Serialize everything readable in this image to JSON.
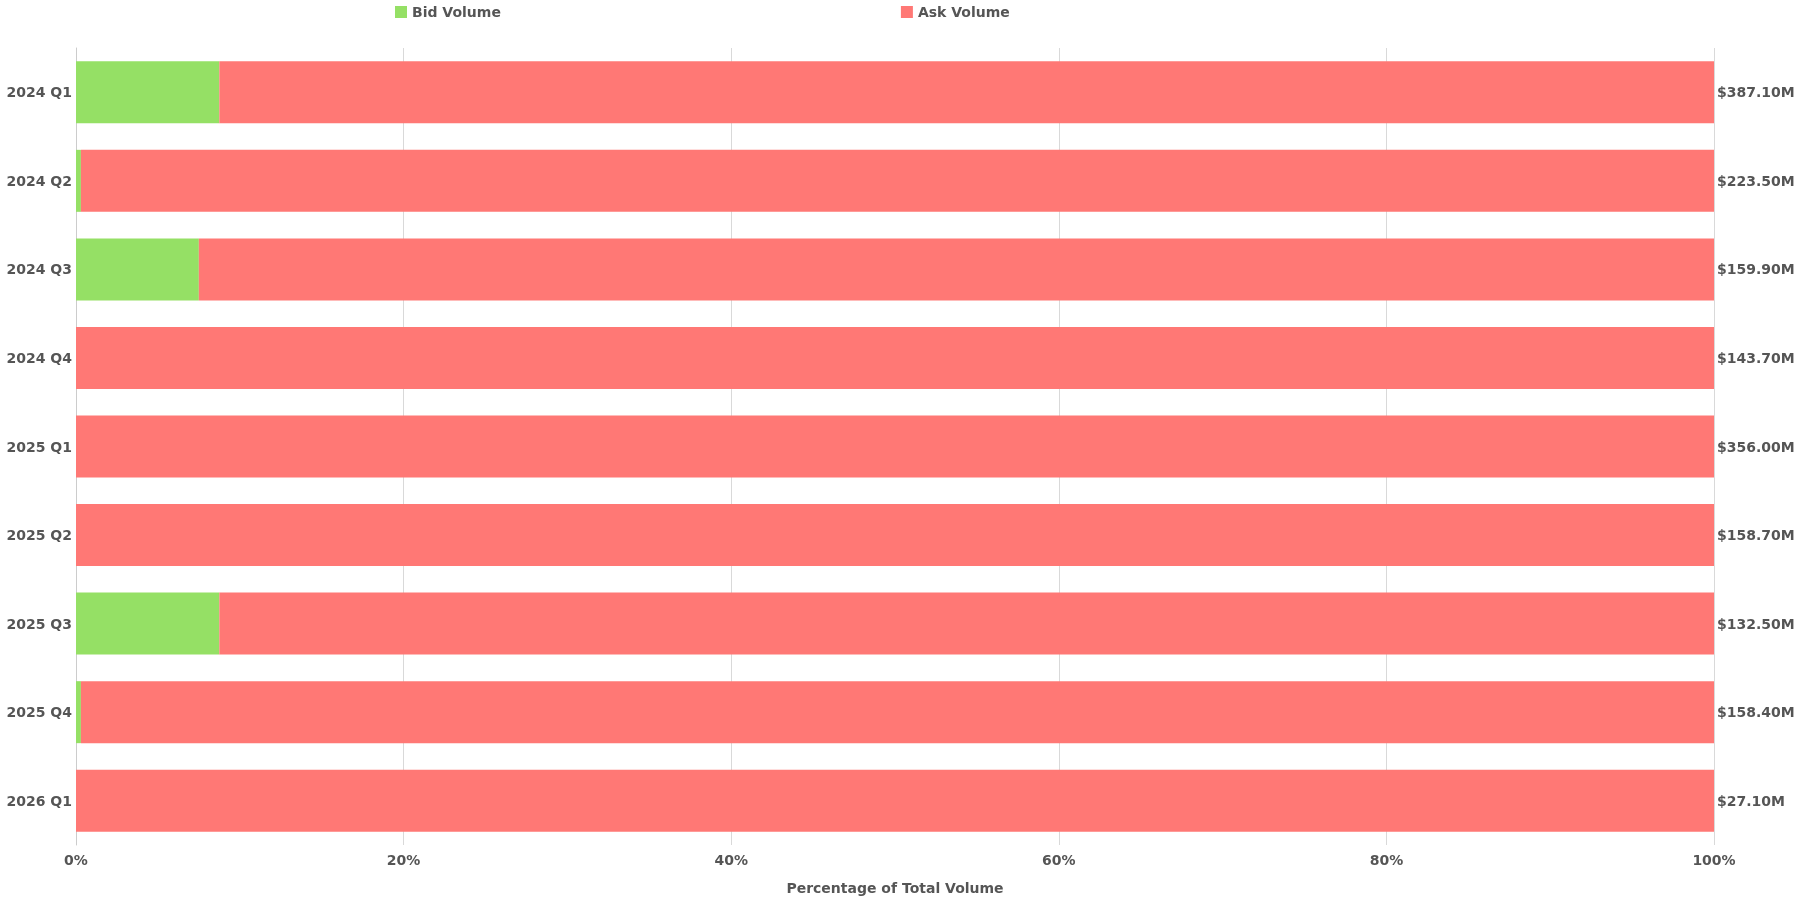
{
  "chart_data": {
    "type": "bar",
    "orientation": "horizontal",
    "stacked": true,
    "xlabel": "Percentage of Total Volume",
    "categories": [
      "2024 Q1",
      "2024 Q2",
      "2024 Q3",
      "2024 Q4",
      "2025 Q1",
      "2025 Q2",
      "2025 Q3",
      "2025 Q4",
      "2026 Q1"
    ],
    "series": [
      {
        "name": "Bid Volume",
        "color": "#95e065",
        "values": [
          8.75,
          0.3,
          7.5,
          0,
          0,
          0,
          8.75,
          0.3,
          0
        ]
      },
      {
        "name": "Ask Volume",
        "color": "#ff7875",
        "values": [
          91.25,
          99.7,
          92.5,
          100,
          100,
          100,
          91.25,
          99.7,
          100
        ]
      }
    ],
    "annotations": [
      "$387.10M",
      "$223.50M",
      "$159.90M",
      "$143.70M",
      "$356.00M",
      "$158.70M",
      "$132.50M",
      "$158.40M",
      "$27.10M"
    ],
    "xlim": [
      0,
      100
    ],
    "xticks": [
      {
        "value": 0,
        "label": "0%"
      },
      {
        "value": 20,
        "label": "20%"
      },
      {
        "value": 40,
        "label": "40%"
      },
      {
        "value": 60,
        "label": "60%"
      },
      {
        "value": 80,
        "label": "80%"
      },
      {
        "value": 100,
        "label": "100%"
      }
    ],
    "grid": "x",
    "legend": "top"
  }
}
